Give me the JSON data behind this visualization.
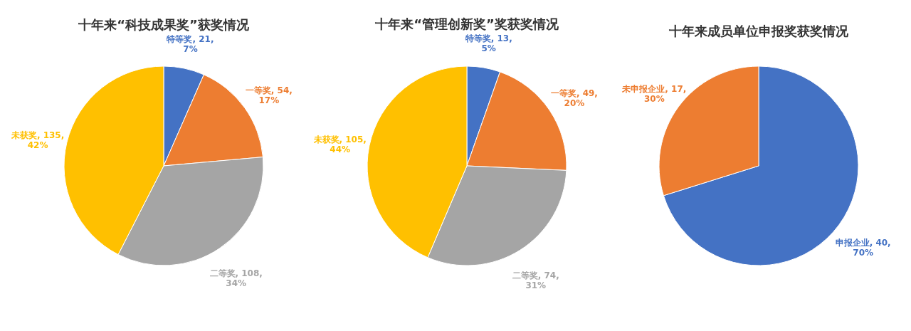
{
  "chart_data": [
    {
      "type": "pie",
      "title": "十年来“科技成果奖”获奖情况",
      "categories": [
        "特等奖",
        "一等奖",
        "二等奖",
        "未获奖"
      ],
      "values": [
        21,
        54,
        108,
        135
      ],
      "colors": [
        "#4472c4",
        "#ed7d31",
        "#a5a5a5",
        "#ffc000"
      ],
      "value_labels": [
        "21, 7%",
        "54, 17%",
        "108, 34%",
        "135, 42%"
      ]
    },
    {
      "type": "pie",
      "title": "十年来“管理创新奖”奖获奖情况",
      "categories": [
        "特等奖",
        "一等奖",
        "二等奖",
        "未获奖"
      ],
      "values": [
        13,
        49,
        74,
        105
      ],
      "colors": [
        "#4472c4",
        "#ed7d31",
        "#a5a5a5",
        "#ffc000"
      ],
      "value_labels": [
        "13, 5%",
        "49, 20%",
        "74, 31%",
        "105, 44%"
      ]
    },
    {
      "type": "pie",
      "title": "十年来成员单位申报奖获奖情况",
      "categories": [
        "申报企业",
        "未申报企业"
      ],
      "values": [
        40,
        17
      ],
      "colors": [
        "#4472c4",
        "#ed7d31"
      ],
      "value_labels": [
        "40, 70%",
        "17, 30%"
      ]
    }
  ]
}
